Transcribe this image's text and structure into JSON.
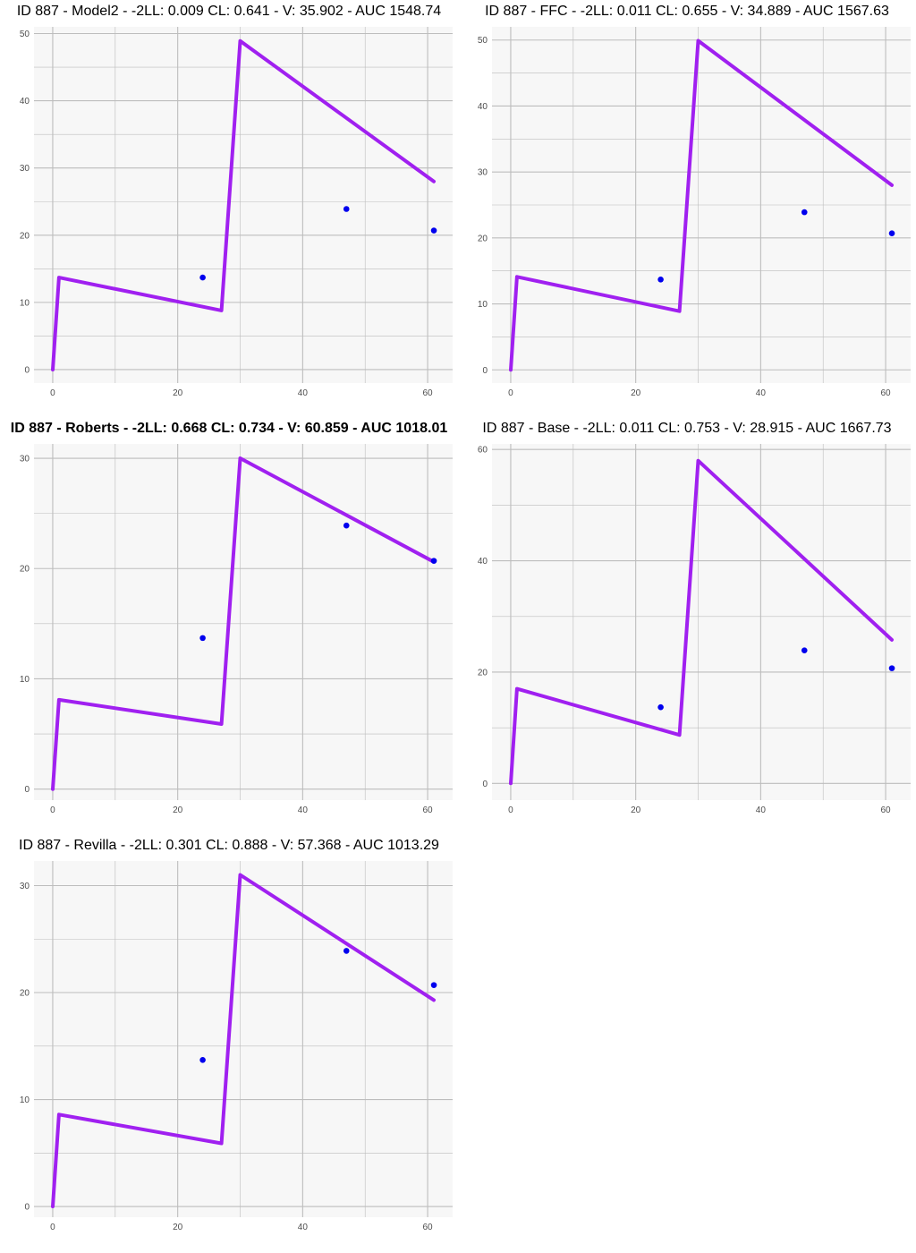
{
  "colors": {
    "line": "#a020f0",
    "point": "#0000ee",
    "panel_bg": "#f7f7f7",
    "grid": "#bdbdbd",
    "tick_text": "#4d4d4d"
  },
  "chart_data": [
    {
      "type": "line",
      "title": "ID 887 - Model2 - -2LL: 0.009 CL: 0.641 - V: 35.902 - AUC 1548.74",
      "title_bold": false,
      "xlim": [
        -3,
        64
      ],
      "ylim": [
        -2,
        51
      ],
      "xticks": [
        0,
        20,
        40,
        60
      ],
      "yticks": [
        0,
        10,
        20,
        30,
        40,
        50
      ],
      "xtick_labels": [
        "0",
        "20",
        "40",
        "60"
      ],
      "ytick_labels": [
        "0",
        "10",
        "20",
        "30",
        "40",
        "50"
      ],
      "series": [
        {
          "kind": "line",
          "x": [
            0,
            1,
            27,
            30,
            61
          ],
          "y": [
            0,
            13.7,
            8.8,
            48.9,
            28.0
          ]
        },
        {
          "kind": "points",
          "x": [
            24,
            47,
            61
          ],
          "y": [
            13.7,
            23.9,
            20.7
          ]
        }
      ]
    },
    {
      "type": "line",
      "title": "ID 887 - FFC - -2LL: 0.011 CL: 0.655 - V: 34.889 - AUC 1567.63",
      "title_bold": false,
      "xlim": [
        -3,
        64
      ],
      "ylim": [
        -2,
        52
      ],
      "xticks": [
        0,
        20,
        40,
        60
      ],
      "yticks": [
        0,
        10,
        20,
        30,
        40,
        50
      ],
      "xtick_labels": [
        "0",
        "20",
        "40",
        "60"
      ],
      "ytick_labels": [
        "0",
        "10",
        "20",
        "30",
        "40",
        "50"
      ],
      "series": [
        {
          "kind": "line",
          "x": [
            0,
            1,
            27,
            30,
            61
          ],
          "y": [
            0,
            14.1,
            8.9,
            49.9,
            28.0
          ]
        },
        {
          "kind": "points",
          "x": [
            24,
            47,
            61
          ],
          "y": [
            13.7,
            23.9,
            20.7
          ]
        }
      ]
    },
    {
      "type": "line",
      "title": "ID 887 - Roberts - -2LL: 0.668 CL: 0.734 - V: 60.859 - AUC 1018.01",
      "title_bold": true,
      "xlim": [
        -3,
        64
      ],
      "ylim": [
        -1,
        31.3
      ],
      "xticks": [
        0,
        20,
        40,
        60
      ],
      "yticks": [
        0,
        10,
        20,
        30
      ],
      "xtick_labels": [
        "0",
        "20",
        "40",
        "60"
      ],
      "ytick_labels": [
        "0",
        "10",
        "20",
        "30"
      ],
      "series": [
        {
          "kind": "line",
          "x": [
            0,
            1,
            27,
            30,
            61
          ],
          "y": [
            0,
            8.1,
            5.9,
            30.0,
            20.6
          ]
        },
        {
          "kind": "points",
          "x": [
            24,
            47,
            61
          ],
          "y": [
            13.7,
            23.9,
            20.7
          ]
        }
      ]
    },
    {
      "type": "line",
      "title": "ID 887 - Base - -2LL: 0.011 CL: 0.753 - V: 28.915 - AUC 1667.73",
      "title_bold": false,
      "xlim": [
        -3,
        64
      ],
      "ylim": [
        -3,
        61
      ],
      "xticks": [
        0,
        20,
        40,
        60
      ],
      "yticks": [
        0,
        20,
        40,
        60
      ],
      "xtick_labels": [
        "0",
        "20",
        "40",
        "60"
      ],
      "ytick_labels": [
        "0",
        "20",
        "40",
        "60"
      ],
      "series": [
        {
          "kind": "line",
          "x": [
            0,
            1,
            27,
            30,
            61
          ],
          "y": [
            0,
            17.0,
            8.7,
            58.0,
            25.8
          ]
        },
        {
          "kind": "points",
          "x": [
            24,
            47,
            61
          ],
          "y": [
            13.7,
            23.9,
            20.7
          ]
        }
      ]
    },
    {
      "type": "line",
      "title": "ID 887 - Revilla - -2LL: 0.301 CL: 0.888 - V: 57.368 - AUC 1013.29",
      "title_bold": false,
      "xlim": [
        -3,
        64
      ],
      "ylim": [
        -1,
        32.3
      ],
      "xticks": [
        0,
        20,
        40,
        60
      ],
      "yticks": [
        0,
        10,
        20,
        30
      ],
      "xtick_labels": [
        "0",
        "20",
        "40",
        "60"
      ],
      "ytick_labels": [
        "0",
        "10",
        "20",
        "30"
      ],
      "series": [
        {
          "kind": "line",
          "x": [
            0,
            1,
            27,
            30,
            61
          ],
          "y": [
            0,
            8.6,
            5.9,
            31.0,
            19.3
          ]
        },
        {
          "kind": "points",
          "x": [
            24,
            47,
            61
          ],
          "y": [
            13.7,
            23.9,
            20.7
          ]
        }
      ]
    }
  ]
}
